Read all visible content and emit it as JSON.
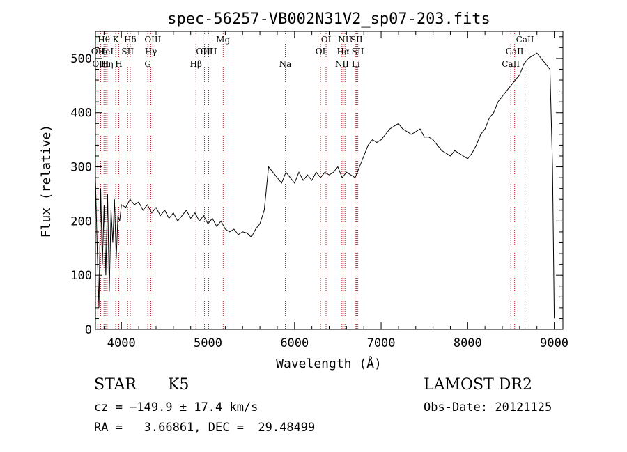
{
  "chart_data": {
    "type": "line",
    "title": "spec-56257-VB002N31V2_sp07-203.fits",
    "xlabel": "Wavelength (Å)",
    "ylabel": "Flux (relative)",
    "xlim": [
      3700,
      9100
    ],
    "ylim": [
      0,
      550
    ],
    "xticks": [
      4000,
      5000,
      6000,
      7000,
      8000,
      9000
    ],
    "yticks": [
      0,
      100,
      200,
      300,
      400,
      500
    ],
    "grid": false,
    "line_color": "#000000",
    "marker_color": "#b22222",
    "spectrum": {
      "x": [
        3700,
        3720,
        3740,
        3760,
        3780,
        3800,
        3820,
        3840,
        3860,
        3880,
        3900,
        3920,
        3940,
        3960,
        3980,
        4000,
        4050,
        4100,
        4150,
        4200,
        4250,
        4300,
        4350,
        4400,
        4450,
        4500,
        4550,
        4600,
        4650,
        4700,
        4750,
        4800,
        4850,
        4900,
        4950,
        5000,
        5050,
        5100,
        5150,
        5200,
        5250,
        5300,
        5350,
        5400,
        5450,
        5500,
        5550,
        5600,
        5650,
        5700,
        5750,
        5800,
        5850,
        5900,
        5950,
        6000,
        6050,
        6100,
        6150,
        6200,
        6250,
        6300,
        6350,
        6400,
        6450,
        6500,
        6550,
        6600,
        6650,
        6700,
        6750,
        6800,
        6850,
        6900,
        6950,
        7000,
        7050,
        7100,
        7150,
        7200,
        7250,
        7300,
        7350,
        7400,
        7450,
        7500,
        7550,
        7600,
        7650,
        7700,
        7750,
        7800,
        7850,
        7900,
        7950,
        8000,
        8050,
        8100,
        8150,
        8200,
        8250,
        8300,
        8350,
        8400,
        8450,
        8500,
        8550,
        8600,
        8650,
        8700,
        8750,
        8800,
        8850,
        8900,
        8950,
        8980,
        9000
      ],
      "y": [
        280,
        150,
        40,
        260,
        120,
        230,
        100,
        250,
        70,
        220,
        160,
        240,
        130,
        210,
        200,
        230,
        225,
        240,
        230,
        235,
        220,
        230,
        215,
        225,
        210,
        220,
        205,
        215,
        200,
        210,
        220,
        205,
        215,
        200,
        210,
        195,
        205,
        190,
        200,
        185,
        180,
        185,
        175,
        180,
        178,
        170,
        185,
        195,
        220,
        300,
        290,
        280,
        270,
        290,
        280,
        270,
        290,
        275,
        285,
        275,
        290,
        280,
        290,
        285,
        290,
        300,
        280,
        290,
        285,
        280,
        300,
        320,
        340,
        350,
        345,
        350,
        360,
        370,
        375,
        380,
        370,
        365,
        360,
        365,
        370,
        355,
        355,
        350,
        340,
        330,
        325,
        320,
        330,
        325,
        320,
        315,
        325,
        340,
        360,
        370,
        390,
        400,
        420,
        430,
        440,
        450,
        460,
        470,
        490,
        500,
        505,
        510,
        500,
        490,
        480,
        300,
        20
      ]
    },
    "line_markers": [
      {
        "label": "Hθ",
        "x": 3798,
        "row": 0
      },
      {
        "label": "OII",
        "x": 3727,
        "row": 1
      },
      {
        "label": "OIII",
        "x": 3760,
        "row": 2
      },
      {
        "label": "HeI",
        "x": 3820,
        "row": 1
      },
      {
        "label": "Hη",
        "x": 3835,
        "row": 2
      },
      {
        "label": "K",
        "x": 3934,
        "row": 0
      },
      {
        "label": "H",
        "x": 3969,
        "row": 2
      },
      {
        "label": "SII",
        "x": 4072,
        "row": 1
      },
      {
        "label": "Hδ",
        "x": 4102,
        "row": 0
      },
      {
        "label": "OIII",
        "x": 4363,
        "row": 0
      },
      {
        "label": "Hγ",
        "x": 4340,
        "row": 1
      },
      {
        "label": "G",
        "x": 4305,
        "row": 2
      },
      {
        "label": "Hβ",
        "x": 4861,
        "row": 2
      },
      {
        "label": "OIII",
        "x": 4959,
        "row": 1
      },
      {
        "label": "OIII",
        "x": 5007,
        "row": 1
      },
      {
        "label": "Mg",
        "x": 5175,
        "row": 0
      },
      {
        "label": "Na",
        "x": 5893,
        "row": 2
      },
      {
        "label": "OI",
        "x": 6300,
        "row": 1
      },
      {
        "label": "OI",
        "x": 6364,
        "row": 0
      },
      {
        "label": "NII",
        "x": 6548,
        "row": 2
      },
      {
        "label": "Hα",
        "x": 6563,
        "row": 1
      },
      {
        "label": "NII",
        "x": 6583,
        "row": 0
      },
      {
        "label": "SII",
        "x": 6716,
        "row": 0
      },
      {
        "label": "SII",
        "x": 6731,
        "row": 1
      },
      {
        "label": "Li",
        "x": 6708,
        "row": 2
      },
      {
        "label": "CaII",
        "x": 8498,
        "row": 2
      },
      {
        "label": "CaII",
        "x": 8542,
        "row": 1
      },
      {
        "label": "CaII",
        "x": 8662,
        "row": 0
      }
    ]
  },
  "info": {
    "object_type": "STAR",
    "subclass": "K5",
    "survey": "LAMOST DR2",
    "velocity": "cz = −149.9 ± 17.4 km/s",
    "obs_date": "Obs-Date: 20121125",
    "coords": "RA =   3.66861, DEC =  29.48499"
  }
}
